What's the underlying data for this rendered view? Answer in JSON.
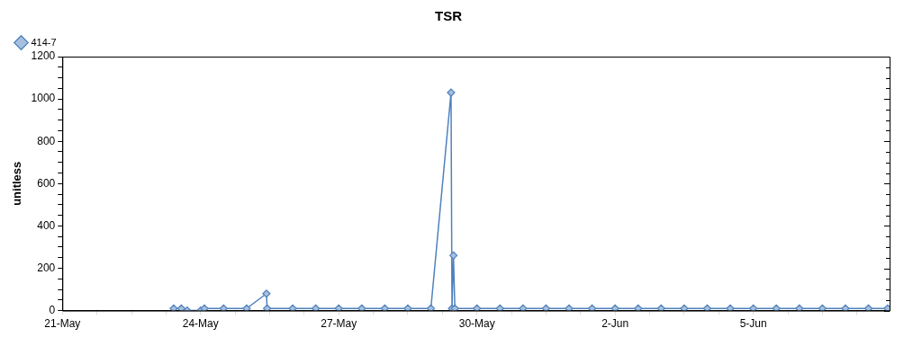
{
  "chart_data": {
    "type": "line",
    "title": "TSR",
    "ylabel": "unitless",
    "xlim": [
      "--05-21",
      "--06-07T23:00"
    ],
    "xticks": [
      {
        "value": "--05-21",
        "label": "21-May"
      },
      {
        "value": "--05-21T18:00",
        "label": null
      },
      {
        "value": "--05-22T12:00",
        "label": null
      },
      {
        "value": "--05-23T06:00",
        "label": null
      },
      {
        "value": "--05-24",
        "label": "24-May"
      },
      {
        "value": "--05-24T18:00",
        "label": null
      },
      {
        "value": "--05-25T12:00",
        "label": null
      },
      {
        "value": "--05-26T06:00",
        "label": null
      },
      {
        "value": "--05-27",
        "label": "27-May"
      },
      {
        "value": "--05-27T18:00",
        "label": null
      },
      {
        "value": "--05-28T12:00",
        "label": null
      },
      {
        "value": "--05-29T06:00",
        "label": null
      },
      {
        "value": "--05-30",
        "label": "30-May"
      },
      {
        "value": "--05-30T18:00",
        "label": null
      },
      {
        "value": "--05-31T12:00",
        "label": null
      },
      {
        "value": "--06-01T06:00",
        "label": null
      },
      {
        "value": "--06-02",
        "label": "2-Jun"
      },
      {
        "value": "--06-02T18:00",
        "label": null
      },
      {
        "value": "--06-03T12:00",
        "label": null
      },
      {
        "value": "--06-04T06:00",
        "label": null
      },
      {
        "value": "--06-05",
        "label": "5-Jun"
      },
      {
        "value": "--06-05T18:00",
        "label": null
      },
      {
        "value": "--06-06T12:00",
        "label": null
      },
      {
        "value": "--06-07T06:00",
        "label": null
      }
    ],
    "ylim": [
      0,
      1200
    ],
    "yticks": [
      0,
      {
        "value": 50,
        "label": null
      },
      {
        "value": 100,
        "label": null
      },
      {
        "value": 150,
        "label": null
      },
      200,
      {
        "value": 250,
        "label": null
      },
      {
        "value": 300,
        "label": null
      },
      {
        "value": 350,
        "label": null
      },
      400,
      {
        "value": 450,
        "label": null
      },
      {
        "value": 500,
        "label": null
      },
      {
        "value": 550,
        "label": null
      },
      600,
      {
        "value": 650,
        "label": null
      },
      {
        "value": 700,
        "label": null
      },
      {
        "value": 750,
        "label": null
      },
      800,
      {
        "value": 850,
        "label": null
      },
      {
        "value": 900,
        "label": null
      },
      {
        "value": 950,
        "label": null
      },
      1000,
      {
        "value": 1050,
        "label": null
      },
      {
        "value": 1100,
        "label": null
      },
      {
        "value": 1150,
        "label": null
      },
      1200
    ],
    "grid": false,
    "legend": "top left",
    "marker": "diamond",
    "line_style": "solid",
    "series": [
      {
        "name": "414-7",
        "color": "#4f81bd",
        "x": [
          "--05-23T10:00",
          "--05-23T14:00",
          "--05-23T17:00",
          "--05-24T00:00",
          "--05-24T02:00",
          "--05-24T12:00",
          "--05-25T00:00",
          "--05-25T10:20",
          "--05-25T10:40",
          "--05-26T00:00",
          "--05-26T12:00",
          "--05-27T00:00",
          "--05-27T12:00",
          "--05-28T00:00",
          "--05-28T12:00",
          "--05-29T00:00",
          "--05-29T10:30",
          "--05-29T11:00",
          "--05-29T11:45",
          "--05-29T12:30",
          "--05-30T00:00",
          "--05-30T12:00",
          "--05-31T00:00",
          "--05-31T12:00",
          "--06-01T00:00",
          "--06-01T12:00",
          "--06-02T00:00",
          "--06-02T12:00",
          "--06-03T00:00",
          "--06-03T12:00",
          "--06-04T00:00",
          "--06-04T12:00",
          "--06-05T00:00",
          "--06-05T12:00",
          "--06-06T00:00",
          "--06-06T12:00",
          "--06-07T00:00",
          "--06-07T12:00",
          "--06-07T22:00"
        ],
        "values": [
          10,
          10,
          0,
          0,
          10,
          10,
          10,
          80,
          10,
          10,
          10,
          10,
          10,
          10,
          10,
          10,
          1030,
          10,
          260,
          10,
          10,
          10,
          10,
          10,
          10,
          10,
          10,
          10,
          10,
          10,
          10,
          10,
          10,
          10,
          10,
          10,
          10,
          10,
          10
        ]
      }
    ]
  }
}
